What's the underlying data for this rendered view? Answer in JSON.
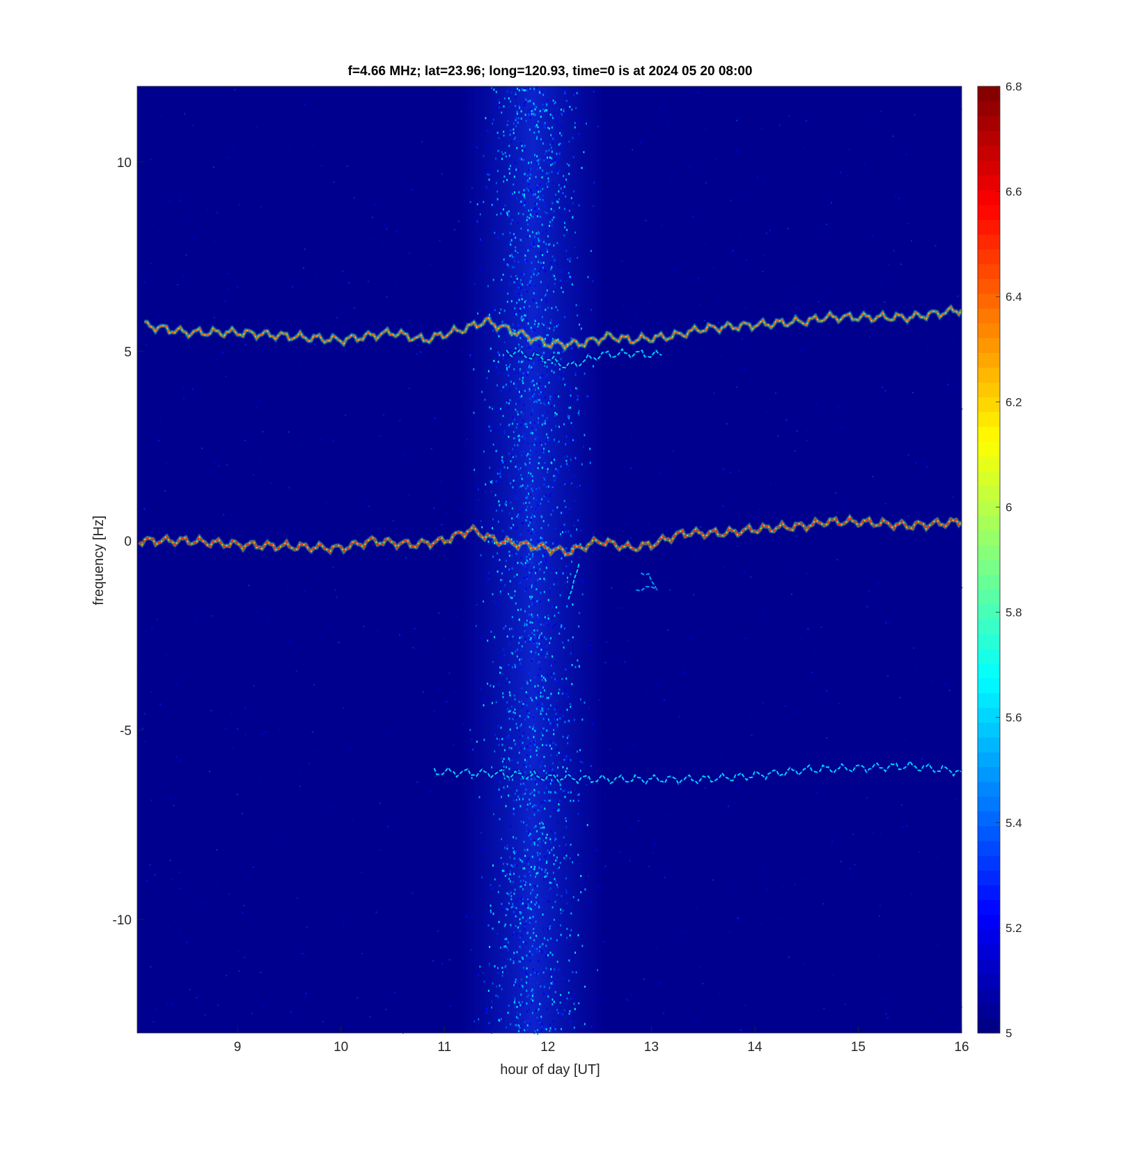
{
  "chart_data": {
    "type": "heatmap",
    "title": "f=4.66 MHz;  lat=23.96; long=120.93, time=0 is at 2024 05 20 08:00",
    "xlabel": "hour of day [UT]",
    "ylabel": "frequency [Hz]",
    "xlim": [
      8.03,
      16
    ],
    "ylim": [
      -13,
      12
    ],
    "x_ticks": [
      9,
      10,
      11,
      12,
      13,
      14,
      15,
      16
    ],
    "x_tick_labels": [
      "9",
      "10",
      "11",
      "12",
      "13",
      "14",
      "15",
      "16"
    ],
    "y_ticks": [
      10,
      5,
      0,
      -5,
      -10
    ],
    "y_tick_labels": [
      "10",
      "5",
      "0",
      "-5",
      "-10"
    ],
    "colorbar": {
      "range": [
        5,
        6.8
      ],
      "ticks": [
        5,
        5.2,
        5.4,
        5.6,
        5.8,
        6,
        6.2,
        6.4,
        6.6,
        6.8
      ],
      "tick_labels": [
        "5",
        "5.2",
        "5.4",
        "5.6",
        "5.8",
        "6",
        "6.2",
        "6.4",
        "6.6",
        "6.8"
      ],
      "colormap": "jet",
      "location": "right"
    },
    "background_color": "#00008f",
    "traces": [
      {
        "name_hint": "main carrier",
        "points": [
          [
            8.05,
            0.0
          ],
          [
            8.5,
            0.0
          ],
          [
            9.0,
            -0.1
          ],
          [
            9.5,
            -0.15
          ],
          [
            10.0,
            -0.2
          ],
          [
            10.3,
            0.0
          ],
          [
            10.7,
            -0.1
          ],
          [
            11.0,
            0.0
          ],
          [
            11.25,
            0.3
          ],
          [
            11.5,
            0.0
          ],
          [
            12.0,
            -0.2
          ],
          [
            12.2,
            -0.3
          ],
          [
            12.5,
            0.0
          ],
          [
            12.8,
            -0.2
          ],
          [
            13.0,
            -0.1
          ],
          [
            13.3,
            0.2
          ],
          [
            13.7,
            0.2
          ],
          [
            14.0,
            0.3
          ],
          [
            14.5,
            0.4
          ],
          [
            14.7,
            0.5
          ],
          [
            15.0,
            0.5
          ],
          [
            15.5,
            0.4
          ],
          [
            16.0,
            0.5
          ]
        ],
        "intensity": 6.5
      },
      {
        "name_hint": "upper echo",
        "points": [
          [
            8.1,
            5.7
          ],
          [
            8.5,
            5.5
          ],
          [
            9.0,
            5.5
          ],
          [
            9.5,
            5.4
          ],
          [
            10.0,
            5.3
          ],
          [
            10.5,
            5.5
          ],
          [
            10.8,
            5.3
          ],
          [
            11.2,
            5.6
          ],
          [
            11.4,
            5.8
          ],
          [
            11.7,
            5.5
          ],
          [
            12.0,
            5.2
          ],
          [
            12.3,
            5.2
          ],
          [
            12.6,
            5.4
          ],
          [
            12.8,
            5.3
          ],
          [
            13.2,
            5.4
          ],
          [
            13.5,
            5.6
          ],
          [
            14.0,
            5.7
          ],
          [
            14.5,
            5.8
          ],
          [
            14.7,
            5.9
          ],
          [
            15.0,
            5.9
          ],
          [
            15.5,
            5.9
          ],
          [
            16.0,
            6.1
          ]
        ],
        "intensity": 6.4
      },
      {
        "name_hint": "upper echo faint",
        "points": [
          [
            11.6,
            5.0
          ],
          [
            12.0,
            4.8
          ],
          [
            12.2,
            4.6
          ],
          [
            12.5,
            4.9
          ],
          [
            12.8,
            4.95
          ],
          [
            13.1,
            4.9
          ]
        ],
        "intensity": 5.6
      },
      {
        "name_hint": "lower echo",
        "points": [
          [
            10.9,
            -6.1
          ],
          [
            11.5,
            -6.15
          ],
          [
            12.0,
            -6.25
          ],
          [
            12.5,
            -6.3
          ],
          [
            13.0,
            -6.3
          ],
          [
            13.5,
            -6.3
          ],
          [
            14.0,
            -6.2
          ],
          [
            14.5,
            -6.05
          ],
          [
            15.0,
            -6.0
          ],
          [
            15.5,
            -5.95
          ],
          [
            16.0,
            -6.1
          ]
        ],
        "intensity": 5.6
      },
      {
        "name_hint": "echo below carrier",
        "points": [
          [
            12.3,
            -0.6
          ],
          [
            12.25,
            -1.0
          ],
          [
            12.2,
            -1.55
          ]
        ],
        "intensity": 5.6
      },
      {
        "name_hint": "echo below carrier 2",
        "points": [
          [
            12.9,
            -0.8
          ],
          [
            13.05,
            -1.2
          ],
          [
            12.85,
            -1.3
          ]
        ],
        "intensity": 5.5
      }
    ],
    "noise_band": {
      "x_center": 11.85,
      "x_halfwidth": 0.7,
      "intensity": 5.3
    },
    "grid": false,
    "legend": "none"
  }
}
